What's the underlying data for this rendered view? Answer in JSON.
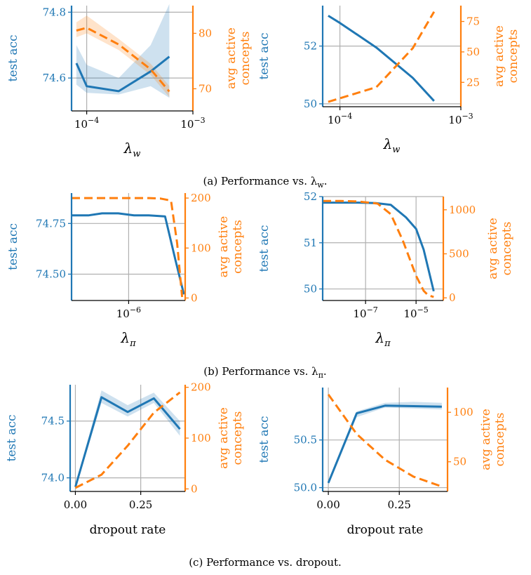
{
  "captions": {
    "a": "(a) Performance vs. λ",
    "a_sub": "w",
    "b": "(b) Performance vs. λ",
    "b_sub": "π",
    "c": "(c) Performance vs. dropout.",
    "period": "."
  },
  "colors": {
    "blue": "#1f77b4",
    "orange": "#ff7f0e",
    "grid": "#b0b0b0"
  },
  "chart_data": [
    {
      "id": "a-left",
      "type": "line",
      "log_x": true,
      "xlabel": "λ",
      "xlabel_sub": "w",
      "ylabel": "test acc",
      "y2label": [
        "avg active",
        "concepts"
      ],
      "xlim": [
        7.2e-05,
        0.001
      ],
      "ylim": [
        74.5,
        74.82
      ],
      "y2lim": [
        66,
        85
      ],
      "xticks": [
        {
          "v": 0.0001,
          "base": "10",
          "exp": "−4"
        },
        {
          "v": 0.001,
          "base": "10",
          "exp": "−3"
        }
      ],
      "yticks": [
        {
          "v": 74.6,
          "label": "74.6"
        },
        {
          "v": 74.8,
          "label": "74.8"
        }
      ],
      "y2ticks": [
        {
          "v": 70,
          "label": "70"
        },
        {
          "v": 80,
          "label": "80"
        }
      ],
      "grid": true,
      "series": [
        {
          "axis": "left",
          "style": "solid",
          "x": [
            8e-05,
            0.0001,
            0.0002,
            0.0004,
            0.0006
          ],
          "y": [
            74.645,
            74.575,
            74.56,
            74.62,
            74.665
          ],
          "lo": [
            74.58,
            74.555,
            74.55,
            74.575,
            74.54
          ],
          "hi": [
            74.7,
            74.64,
            74.6,
            74.7,
            74.825
          ]
        },
        {
          "axis": "right",
          "style": "dashed",
          "x": [
            8e-05,
            0.0001,
            0.0002,
            0.0004,
            0.0006
          ],
          "y": [
            80.5,
            81,
            78,
            73.5,
            69.5
          ],
          "lo": [
            79.3,
            80,
            77,
            72.5,
            68.5
          ],
          "hi": [
            82,
            83.2,
            79,
            74.5,
            70.5
          ]
        }
      ]
    },
    {
      "id": "a-right",
      "type": "line",
      "log_x": true,
      "xlabel": "λ",
      "xlabel_sub": "w",
      "ylabel": "test acc",
      "y2label": [
        "avg active",
        "concepts"
      ],
      "xlim": [
        7.2e-05,
        0.001
      ],
      "ylim": [
        49.9,
        53.4
      ],
      "y2lim": [
        5,
        88
      ],
      "xticks": [
        {
          "v": 0.0001,
          "base": "10",
          "exp": "−4"
        },
        {
          "v": 0.001,
          "base": "10",
          "exp": "−3"
        }
      ],
      "yticks": [
        {
          "v": 50,
          "label": "50"
        },
        {
          "v": 52,
          "label": "52"
        }
      ],
      "y2ticks": [
        {
          "v": 25,
          "label": "25"
        },
        {
          "v": 50,
          "label": "50"
        },
        {
          "v": 75,
          "label": "75"
        }
      ],
      "grid": true,
      "series": [
        {
          "axis": "left",
          "style": "solid",
          "x": [
            8e-05,
            0.0001,
            0.0002,
            0.0004,
            0.0006
          ],
          "y": [
            53.05,
            52.8,
            51.95,
            50.9,
            50.1
          ]
        },
        {
          "axis": "right",
          "style": "dashed",
          "x": [
            8e-05,
            0.0001,
            0.0002,
            0.0004,
            0.0006
          ],
          "y": [
            9,
            12,
            21,
            53,
            83
          ]
        }
      ]
    },
    {
      "id": "b-left",
      "type": "line",
      "log_x": true,
      "xlabel": "λ",
      "xlabel_sub": "π",
      "ylabel": "test acc",
      "y2label": [
        "avg active",
        "concepts"
      ],
      "xlim": [
        1.4e-07,
        7e-06
      ],
      "ylim": [
        74.37,
        74.9
      ],
      "y2lim": [
        -5,
        210
      ],
      "xticks": [
        {
          "v": 1e-06,
          "base": "10",
          "exp": "−6"
        }
      ],
      "yticks": [
        {
          "v": 74.5,
          "label": "74.50"
        },
        {
          "v": 74.75,
          "label": "74.75"
        }
      ],
      "y2ticks": [
        {
          "v": 0,
          "label": "0"
        },
        {
          "v": 100,
          "label": "100"
        },
        {
          "v": 200,
          "label": "200"
        }
      ],
      "grid": true,
      "series": [
        {
          "axis": "left",
          "style": "solid",
          "x": [
            1.4e-07,
            2.5e-07,
            4e-07,
            7e-07,
            1.2e-06,
            2e-06,
            3.5e-06,
            5e-06,
            6.7e-06
          ],
          "y": [
            74.79,
            74.79,
            74.8,
            74.8,
            74.79,
            74.79,
            74.785,
            74.57,
            74.4
          ]
        },
        {
          "axis": "right",
          "style": "dashed",
          "x": [
            1.4e-07,
            5e-07,
            1e-06,
            2e-06,
            3e-06,
            4.3e-06,
            5.3e-06,
            6.3e-06
          ],
          "y": [
            200,
            200,
            200,
            200,
            199,
            195,
            110,
            2
          ]
        }
      ]
    },
    {
      "id": "b-right",
      "type": "line",
      "log_x": true,
      "xlabel": "λ",
      "xlabel_sub": "π",
      "ylabel": "test acc",
      "y2label": [
        "avg active",
        "concepts"
      ],
      "xlim": [
        2e-09,
        0.00012
      ],
      "ylim": [
        49.75,
        52.0
      ],
      "y2lim": [
        -30,
        1150
      ],
      "xticks": [
        {
          "v": 1e-07,
          "base": "10",
          "exp": "−7"
        },
        {
          "v": 1e-05,
          "base": "10",
          "exp": "−5"
        }
      ],
      "yticks": [
        {
          "v": 50,
          "label": "50"
        },
        {
          "v": 51,
          "label": "51"
        },
        {
          "v": 52,
          "label": "52"
        }
      ],
      "y2ticks": [
        {
          "v": 0,
          "label": "0"
        },
        {
          "v": 500,
          "label": "500"
        },
        {
          "v": 1000,
          "label": "1000"
        }
      ],
      "grid": true,
      "series": [
        {
          "axis": "left",
          "style": "solid",
          "x": [
            2e-09,
            1e-08,
            5e-08,
            2.5e-07,
            1e-06,
            4e-06,
            1e-05,
            2e-05,
            5e-05
          ],
          "y": [
            51.87,
            51.87,
            51.87,
            51.86,
            51.82,
            51.55,
            51.3,
            50.85,
            49.95
          ]
        },
        {
          "axis": "right",
          "style": "dashed",
          "x": [
            2e-09,
            1e-08,
            5e-08,
            3e-07,
            1e-06,
            3e-06,
            1e-05,
            2e-05,
            3e-05,
            5e-05
          ],
          "y": [
            1100,
            1100,
            1095,
            1070,
            950,
            650,
            250,
            80,
            30,
            10
          ]
        }
      ]
    },
    {
      "id": "c-left",
      "type": "line",
      "log_x": false,
      "xlabel": "dropout rate",
      "xlabel_sub": "",
      "ylabel": "test acc",
      "y2label": [
        "avg active",
        "concepts"
      ],
      "xlim": [
        -0.02,
        0.42
      ],
      "ylim": [
        73.88,
        74.82
      ],
      "y2lim": [
        -5,
        205
      ],
      "xticks": [
        {
          "v": 0,
          "label": "0.00"
        },
        {
          "v": 0.25,
          "label": "0.25"
        }
      ],
      "yticks": [
        {
          "v": 74.0,
          "label": "74.0"
        },
        {
          "v": 74.5,
          "label": "74.5"
        }
      ],
      "y2ticks": [
        {
          "v": 0,
          "label": "0"
        },
        {
          "v": 100,
          "label": "100"
        },
        {
          "v": 200,
          "label": "200"
        }
      ],
      "grid": true,
      "series": [
        {
          "axis": "left",
          "style": "solid",
          "x": [
            0,
            0.1,
            0.2,
            0.3,
            0.4
          ],
          "y": [
            73.92,
            74.71,
            74.58,
            74.7,
            74.43
          ],
          "lo": [
            73.9,
            74.66,
            74.54,
            74.66,
            74.37
          ],
          "hi": [
            73.94,
            74.77,
            74.64,
            74.75,
            74.5
          ]
        },
        {
          "axis": "right",
          "style": "dashed",
          "x": [
            0,
            0.1,
            0.2,
            0.3,
            0.4
          ],
          "y": [
            2,
            28,
            85,
            150,
            190
          ]
        }
      ]
    },
    {
      "id": "c-right",
      "type": "line",
      "log_x": false,
      "xlabel": "dropout rate",
      "xlabel_sub": "",
      "ylabel": "test acc",
      "y2label": [
        "avg active",
        "concepts"
      ],
      "xlim": [
        -0.02,
        0.42
      ],
      "ylim": [
        49.96,
        51.05
      ],
      "y2lim": [
        20,
        125
      ],
      "xticks": [
        {
          "v": 0,
          "label": "0.00"
        },
        {
          "v": 0.25,
          "label": "0.25"
        }
      ],
      "yticks": [
        {
          "v": 50.0,
          "label": "50.0"
        },
        {
          "v": 50.5,
          "label": "50.5"
        }
      ],
      "y2ticks": [
        {
          "v": 50,
          "label": "50"
        },
        {
          "v": 100,
          "label": "100"
        }
      ],
      "grid": true,
      "series": [
        {
          "axis": "left",
          "style": "solid",
          "x": [
            0,
            0.1,
            0.2,
            0.3,
            0.4
          ],
          "y": [
            50.05,
            50.78,
            50.86,
            50.855,
            50.85
          ],
          "lo": [
            50.03,
            50.74,
            50.84,
            50.83,
            50.82
          ],
          "hi": [
            50.07,
            50.8,
            50.89,
            50.9,
            50.89
          ]
        },
        {
          "axis": "right",
          "style": "dashed",
          "x": [
            0,
            0.1,
            0.2,
            0.3,
            0.4
          ],
          "y": [
            118,
            78,
            52,
            35,
            25
          ]
        }
      ]
    }
  ]
}
